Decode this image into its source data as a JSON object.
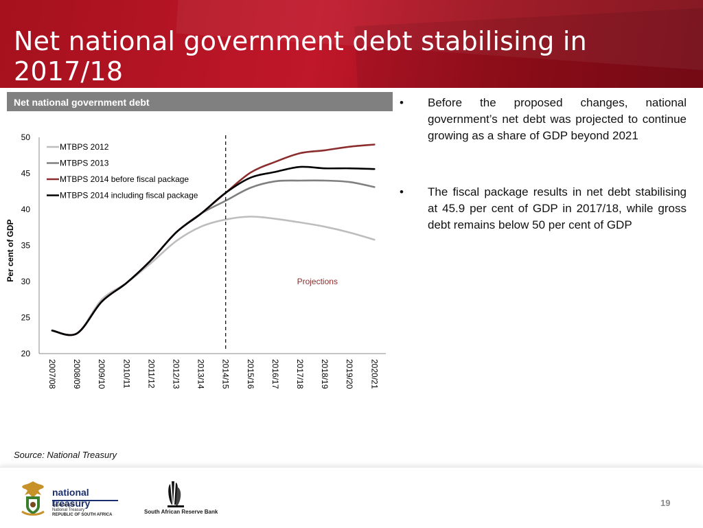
{
  "slide": {
    "title": "Net national government debt stabilising in 2017/18",
    "chart_header": "Net national government debt",
    "source": "Source: National Treasury",
    "page_number": "19"
  },
  "bullets": [
    "Before the proposed changes, national government’s net debt  was projected to continue growing as a share of GDP beyond 2021",
    "The fiscal package results in net debt stabilising at 45.9 per cent of GDP in 2017/18, while gross debt remains below 50 per cent of GDP"
  ],
  "footer": {
    "nt_name": "national treasury",
    "nt_sub1": "Department:",
    "nt_sub2": "National Treasury",
    "nt_sub3": "REPUBLIC OF SOUTH AFRICA",
    "sarb_name": "South African Reserve Bank"
  },
  "chart_data": {
    "type": "line",
    "title": "",
    "xlabel": "",
    "ylabel": "Per cent of GDP",
    "ylim": [
      20,
      50
    ],
    "yticks": [
      20,
      25,
      30,
      35,
      40,
      45,
      50
    ],
    "categories": [
      "2007/08",
      "2008/09",
      "2009/10",
      "2010/11",
      "2011/12",
      "2012/13",
      "2013/14",
      "2014/15",
      "2015/16",
      "2016/17",
      "2017/18",
      "2018/19",
      "2019/20",
      "2020/21"
    ],
    "projection_start": "2014/15",
    "annotation": "Projections",
    "legend_position": "top-left",
    "grid": false,
    "series": [
      {
        "name": "MTBPS 2012",
        "color": "#bdbdbd",
        "values": [
          23.2,
          22.8,
          27.5,
          29.8,
          32.6,
          35.6,
          37.6,
          38.6,
          39.0,
          38.7,
          38.2,
          37.6,
          36.8,
          35.8
        ]
      },
      {
        "name": "MTBPS 2013",
        "color": "#7f7f7f",
        "values": [
          23.2,
          22.8,
          27.2,
          29.8,
          33.0,
          36.8,
          39.4,
          41.2,
          43.0,
          43.9,
          44.0,
          44.0,
          43.8,
          43.1
        ]
      },
      {
        "name": "MTBPS 2014 before fiscal package",
        "color": "#8b2d2d",
        "values": [
          23.2,
          22.8,
          27.2,
          29.8,
          33.0,
          36.8,
          39.4,
          42.3,
          45.1,
          46.6,
          47.8,
          48.2,
          48.7,
          49.0
        ]
      },
      {
        "name": "MTBPS 2014 including fiscal package",
        "color": "#000000",
        "values": [
          23.2,
          22.8,
          27.2,
          29.8,
          33.0,
          36.8,
          39.4,
          42.3,
          44.4,
          45.2,
          45.9,
          45.7,
          45.7,
          45.6
        ]
      }
    ]
  }
}
